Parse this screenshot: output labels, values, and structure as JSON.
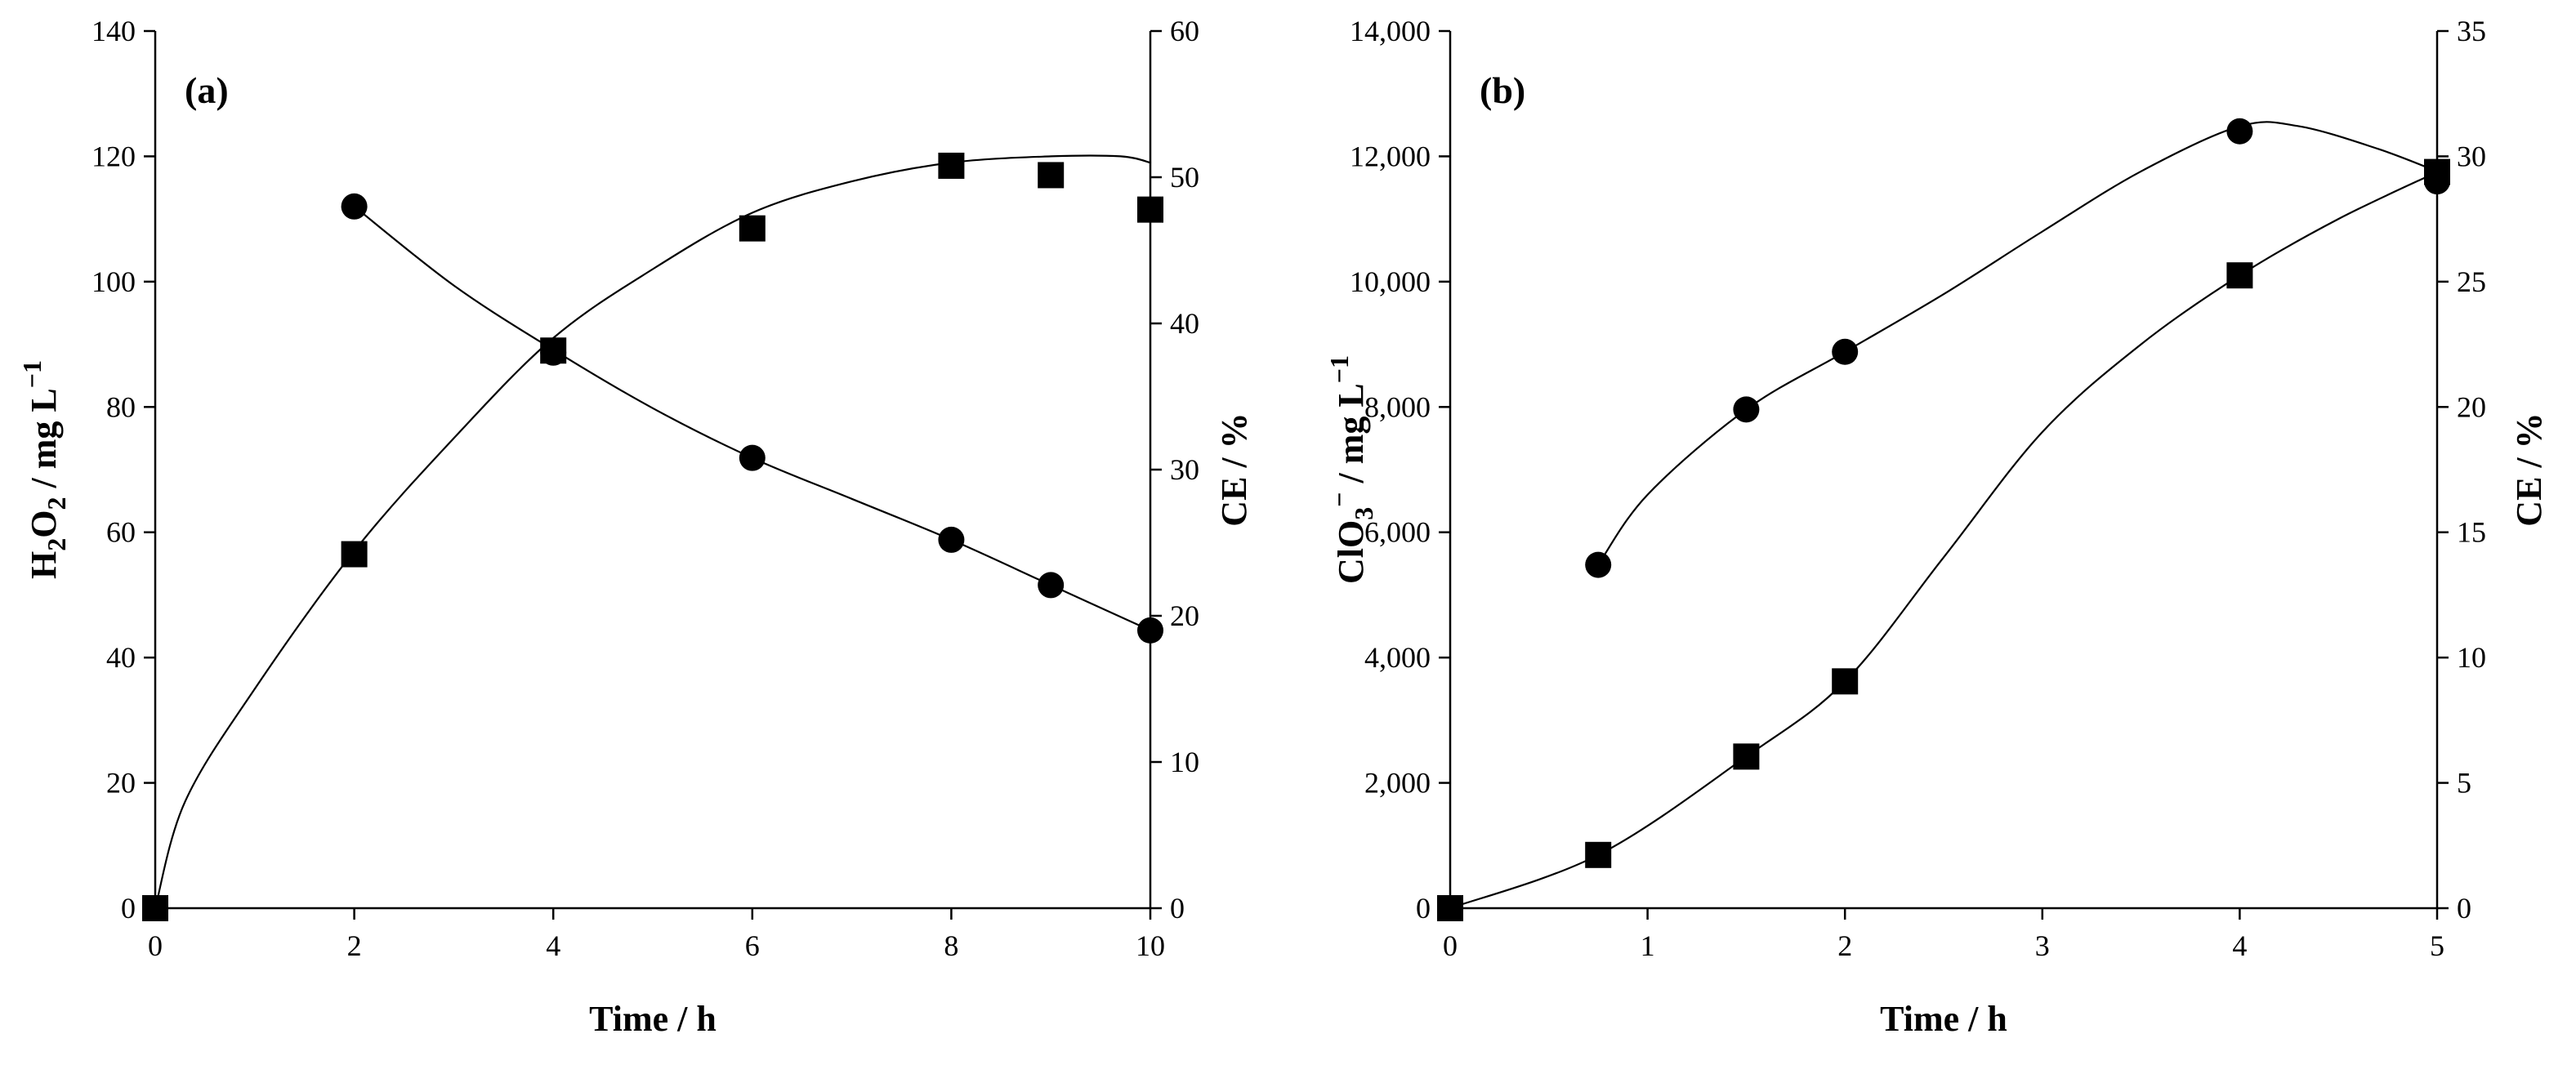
{
  "chart_data": [
    {
      "type": "scatter",
      "panel_label": "(a)",
      "xlabel": "Time / h",
      "ylabel": "H2O2 / mg L−1",
      "ylabel_parts": {
        "main": "H",
        "sub1": "2",
        "mid": "O",
        "sub2": "2",
        "rest": " / mg L",
        "sup": "−1"
      },
      "y2label": "CE / %",
      "xlim": [
        0,
        10
      ],
      "ylim": [
        0,
        140
      ],
      "y2lim": [
        0,
        60
      ],
      "xticks": [
        0,
        2,
        4,
        6,
        8,
        10
      ],
      "yticks": [
        0,
        20,
        40,
        60,
        80,
        100,
        120,
        140
      ],
      "y2ticks": [
        0,
        10,
        20,
        30,
        40,
        50,
        60
      ],
      "xtick_labels": [
        "0",
        "2",
        "4",
        "6",
        "8",
        "10"
      ],
      "ytick_labels": [
        "0",
        "20",
        "40",
        "60",
        "80",
        "100",
        "120",
        "140"
      ],
      "y2tick_labels": [
        "0",
        "10",
        "20",
        "30",
        "40",
        "50",
        "60"
      ],
      "grid": false,
      "series": [
        {
          "marker": "square",
          "axis": "left",
          "x": [
            0,
            2,
            4,
            6,
            8,
            9,
            10
          ],
          "y": [
            0,
            56.5,
            89,
            108.5,
            118.5,
            117,
            111.5
          ],
          "fit_x": [
            0,
            0.3,
            1,
            2,
            3,
            4,
            5,
            6,
            7,
            8,
            9,
            9.7,
            10
          ],
          "fit_y": [
            0,
            17,
            35,
            57,
            75,
            91,
            102,
            111,
            116,
            119,
            120,
            120,
            119
          ]
        },
        {
          "marker": "circle",
          "axis": "right",
          "x": [
            2,
            4,
            6,
            8,
            9,
            10
          ],
          "y": [
            48,
            38,
            30.8,
            25.2,
            22.1,
            19
          ],
          "fit_x": [
            2,
            3,
            4,
            5,
            6,
            7,
            8,
            9,
            10
          ],
          "fit_y": [
            48,
            42.6,
            38.2,
            34.2,
            30.8,
            28,
            25.2,
            22.1,
            19
          ]
        }
      ]
    },
    {
      "type": "scatter",
      "panel_label": "(b)",
      "xlabel": "Time / h",
      "ylabel": "ClO3− / mg L−1",
      "ylabel_parts": {
        "main": "ClO",
        "sub": "3",
        "sup1": "−",
        "rest": " / mg L",
        "sup2": "−1"
      },
      "y2label": "CE / %",
      "xlim": [
        0,
        5
      ],
      "ylim": [
        0,
        14000
      ],
      "y2lim": [
        0,
        35
      ],
      "xticks": [
        0,
        1,
        2,
        3,
        4,
        5
      ],
      "yticks": [
        0,
        2000,
        4000,
        6000,
        8000,
        10000,
        12000,
        14000
      ],
      "y2ticks": [
        0,
        5,
        10,
        15,
        20,
        25,
        30,
        35
      ],
      "xtick_labels": [
        "0",
        "1",
        "2",
        "3",
        "4",
        "5"
      ],
      "ytick_labels": [
        "0",
        "2,000",
        "4,000",
        "6,000",
        "8,000",
        "10,000",
        "12,000",
        "14,000"
      ],
      "y2tick_labels": [
        "0",
        "5",
        "10",
        "15",
        "20",
        "25",
        "30",
        "35"
      ],
      "grid": false,
      "series": [
        {
          "marker": "square",
          "axis": "left",
          "x": [
            0,
            0.75,
            1.5,
            2,
            4,
            5
          ],
          "y": [
            0,
            850,
            2420,
            3620,
            10100,
            11750
          ],
          "fit_x": [
            0,
            0.75,
            1.5,
            2,
            2.5,
            3,
            3.5,
            4,
            4.5,
            5
          ],
          "fit_y": [
            0,
            850,
            2420,
            3620,
            5600,
            7600,
            9000,
            10100,
            11000,
            11750
          ]
        },
        {
          "marker": "circle",
          "axis": "right",
          "x": [
            0.75,
            1.5,
            2,
            4,
            5
          ],
          "y": [
            13.7,
            19.9,
            22.2,
            31,
            29
          ],
          "fit_x": [
            0.75,
            1,
            1.5,
            2,
            2.5,
            3,
            3.5,
            4,
            4.3,
            4.7,
            5
          ],
          "fit_y": [
            13.7,
            16.5,
            19.9,
            22.2,
            24.5,
            27,
            29.4,
            31.2,
            31.2,
            30.3,
            29.4
          ]
        }
      ]
    }
  ]
}
